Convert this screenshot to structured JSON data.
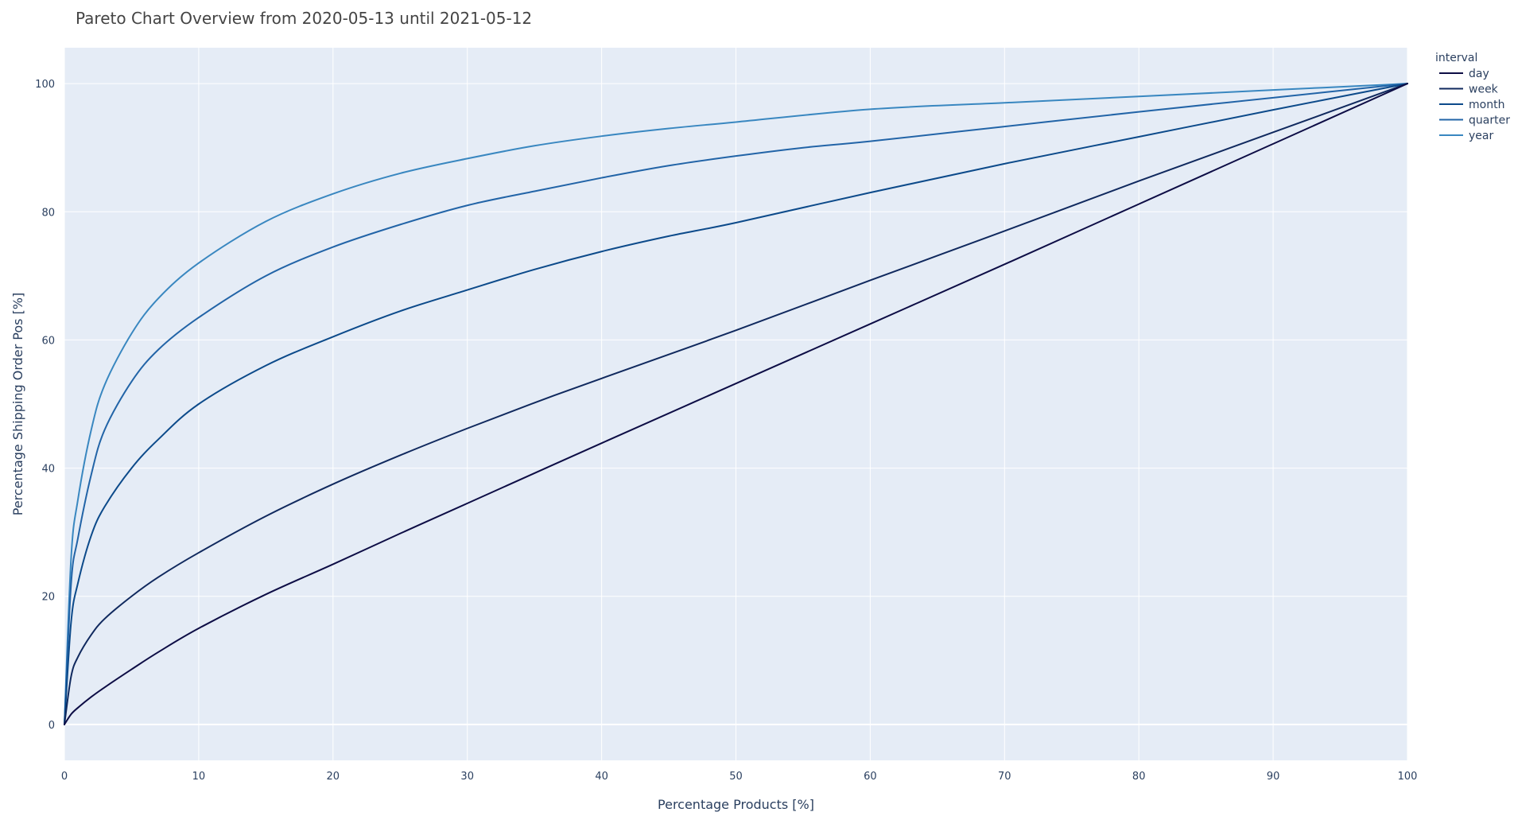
{
  "chart_data": {
    "type": "line",
    "title": "Pareto Chart Overview from 2020-05-13 until 2021-05-12",
    "xlabel": "Percentage Products [%]",
    "ylabel": "Percentage Shipping Order Pos [%]",
    "xlim": [
      0,
      100
    ],
    "ylim": [
      -5.6,
      105.6
    ],
    "x_ticks": [
      0,
      10,
      20,
      30,
      40,
      50,
      60,
      70,
      80,
      90,
      100
    ],
    "y_ticks": [
      0,
      20,
      40,
      60,
      80,
      100
    ],
    "grid": true,
    "legend_title": "interval",
    "legend_position": "top-right",
    "plot_background": "#e5ecf6",
    "grid_color": "#ffffff",
    "series": [
      {
        "name": "day",
        "color": "#0d0d45",
        "x": [
          0,
          0.5,
          1,
          2,
          3,
          5,
          7,
          10,
          15,
          20,
          25,
          30,
          40,
          50,
          60,
          70,
          80,
          90,
          100
        ],
        "y": [
          0,
          1.6,
          2.6,
          4.3,
          5.8,
          8.6,
          11.3,
          15.0,
          20.3,
          25.0,
          29.8,
          34.5,
          43.9,
          53.2,
          62.5,
          71.8,
          81.2,
          90.6,
          100
        ]
      },
      {
        "name": "week",
        "color": "#10295e",
        "x": [
          0,
          0.5,
          1,
          2,
          3,
          5,
          7,
          10,
          15,
          20,
          25,
          30,
          35,
          40,
          50,
          60,
          70,
          80,
          90,
          100
        ],
        "y": [
          0,
          7.5,
          10.5,
          14.0,
          16.5,
          20.0,
          23.0,
          26.8,
          32.5,
          37.5,
          42.0,
          46.2,
          50.2,
          54.0,
          61.5,
          69.3,
          77.0,
          84.8,
          92.4,
          100
        ]
      },
      {
        "name": "month",
        "color": "#0c4a8a",
        "x": [
          0,
          0.5,
          1,
          2,
          3,
          5,
          7,
          10,
          15,
          20,
          25,
          30,
          35,
          40,
          45,
          50,
          60,
          70,
          80,
          90,
          100
        ],
        "y": [
          0,
          16.0,
          22.0,
          29.5,
          34.0,
          40.0,
          44.5,
          50.0,
          56.0,
          60.5,
          64.5,
          67.8,
          71.0,
          73.8,
          76.2,
          78.3,
          83.0,
          87.5,
          91.7,
          95.9,
          100
        ]
      },
      {
        "name": "quarter",
        "color": "#2264a7",
        "x": [
          0,
          0.5,
          1,
          2,
          3,
          5,
          7,
          10,
          15,
          20,
          25,
          30,
          35,
          40,
          45,
          50,
          55,
          60,
          70,
          80,
          90,
          100
        ],
        "y": [
          0,
          22.0,
          29.0,
          39.0,
          46.0,
          53.5,
          58.5,
          63.5,
          70.0,
          74.5,
          78.0,
          81.0,
          83.2,
          85.3,
          87.2,
          88.7,
          90.0,
          91.0,
          93.3,
          95.6,
          97.8,
          100
        ]
      },
      {
        "name": "year",
        "color": "#3987c0",
        "x": [
          0,
          0.5,
          1,
          2,
          3,
          5,
          7,
          10,
          15,
          20,
          25,
          30,
          35,
          40,
          45,
          50,
          60,
          70,
          80,
          90,
          100
        ],
        "y": [
          0,
          26.0,
          35.0,
          46.0,
          53.0,
          61.0,
          66.5,
          72.0,
          78.5,
          82.8,
          86.0,
          88.3,
          90.3,
          91.8,
          93.0,
          94.0,
          96.0,
          97.0,
          98.0,
          99.0,
          100
        ]
      }
    ]
  }
}
